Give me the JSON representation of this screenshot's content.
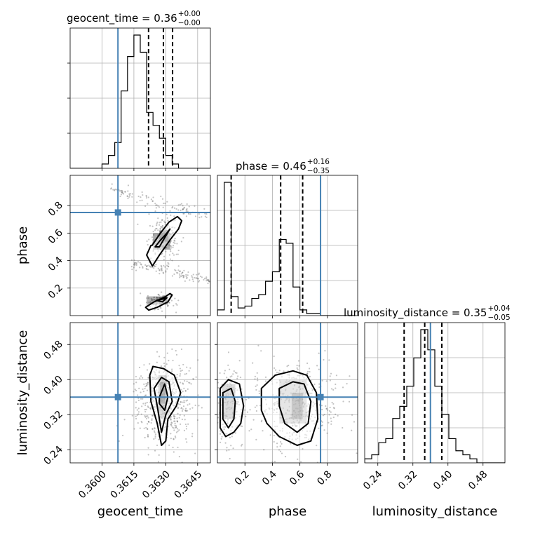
{
  "colors": {
    "truth": "#4682b4",
    "hist": "#000000",
    "grid": "#b0b0b0",
    "scatter": "#555555"
  },
  "chart_data": {
    "type": "corner",
    "parameters": [
      "geocent_time",
      "phase",
      "luminosity_distance"
    ],
    "truths": {
      "geocent_time": 0.36075,
      "phase": 0.75,
      "luminosity_distance": 0.36
    },
    "axis_labels": {
      "geocent_time": "geocent_time",
      "phase": "phase",
      "luminosity_distance": "luminosity_distance"
    },
    "ranges": {
      "geocent_time": [
        0.3585,
        0.3651
      ],
      "phase": [
        0.0,
        1.02
      ],
      "luminosity_distance": [
        0.21,
        0.53
      ]
    },
    "ticks": {
      "geocent_time": {
        "values": [
          0.36,
          0.3615,
          0.363,
          0.3645
        ],
        "labels": [
          "0.3600",
          "0.3615",
          "0.3630",
          "0.3645"
        ]
      },
      "phase": {
        "values": [
          0.2,
          0.4,
          0.6,
          0.8
        ],
        "labels": [
          "0.2",
          "0.4",
          "0.6",
          "0.8"
        ]
      },
      "luminosity_distance": {
        "values": [
          0.24,
          0.32,
          0.4,
          0.48
        ],
        "labels": [
          "0.24",
          "0.32",
          "0.40",
          "0.48"
        ]
      }
    },
    "titles": {
      "geocent_time": {
        "main": "geocent_time = 0.36",
        "sup": "+0.00",
        "sub": "−0.00"
      },
      "phase": {
        "main": "phase = 0.46",
        "sup": "+0.16",
        "sub": "−0.35"
      },
      "luminosity_distance": {
        "main": "luminosity_distance = 0.35",
        "sup": "+0.04",
        "sub": "−0.05"
      }
    },
    "histograms": {
      "geocent_time": {
        "edges_start": 0.3585,
        "bin_width": 0.0003,
        "counts": [
          0,
          0,
          0,
          0,
          0,
          1,
          3,
          6,
          18,
          26,
          31,
          27,
          13,
          10,
          7,
          3,
          1,
          0,
          0,
          0,
          0,
          0
        ],
        "quantiles": [
          0.36219,
          0.36289,
          0.36332
        ]
      },
      "phase": {
        "edges_start": 0.0,
        "bin_width": 0.05,
        "counts": [
          3,
          70,
          10,
          4,
          5,
          9,
          11,
          18,
          23,
          40,
          38,
          15,
          3,
          1,
          1,
          0,
          0,
          0,
          0,
          0
        ],
        "quantiles": [
          0.1,
          0.46,
          0.62
        ]
      },
      "luminosity_distance": {
        "edges_start": 0.21,
        "bin_width": 0.016,
        "counts": [
          1,
          2,
          5,
          6,
          11,
          14,
          19,
          26,
          33,
          28,
          19,
          12,
          6,
          3,
          2,
          1,
          0,
          0,
          0,
          0
        ],
        "quantiles": [
          0.3,
          0.347,
          0.386
        ]
      }
    },
    "contours": {
      "phase_vs_geocent_time": [
        {
          "level": 0.393,
          "x": [
            0.36235,
            0.36275,
            0.36315,
            0.36355,
            0.36375,
            0.3636,
            0.3632,
            0.3627,
            0.36237,
            0.3621,
            0.3623
          ],
          "y": [
            0.51,
            0.6,
            0.68,
            0.72,
            0.69,
            0.63,
            0.55,
            0.44,
            0.36,
            0.44,
            0.51
          ]
        },
        {
          "level": 0.675,
          "x": [
            0.3627,
            0.36305,
            0.3632,
            0.363,
            0.3627,
            0.3625,
            0.3627
          ],
          "y": [
            0.54,
            0.6,
            0.63,
            0.58,
            0.5,
            0.5,
            0.54
          ]
        },
        {
          "level": 0.393,
          "x": [
            0.36205,
            0.36245,
            0.3629,
            0.3632,
            0.3633,
            0.3631,
            0.3626,
            0.3622,
            0.36205
          ],
          "y": [
            0.06,
            0.1,
            0.13,
            0.16,
            0.15,
            0.1,
            0.06,
            0.04,
            0.06
          ]
        },
        {
          "level": 0.675,
          "x": [
            0.36255,
            0.36285,
            0.36305,
            0.36285,
            0.36255
          ],
          "y": [
            0.11,
            0.12,
            0.13,
            0.1,
            0.11
          ]
        }
      ],
      "luminosity_distance_vs_geocent_time": [
        {
          "level": 0.393,
          "x": [
            0.36225,
            0.3624,
            0.3629,
            0.3634,
            0.3637,
            0.3635,
            0.3631,
            0.363,
            0.3628,
            0.3626,
            0.3623,
            0.36225
          ],
          "y": [
            0.41,
            0.43,
            0.425,
            0.41,
            0.37,
            0.34,
            0.31,
            0.26,
            0.25,
            0.3,
            0.35,
            0.41
          ]
        },
        {
          "level": 0.675,
          "x": [
            0.36245,
            0.3628,
            0.36315,
            0.3633,
            0.363,
            0.3628,
            0.3626,
            0.36245
          ],
          "y": [
            0.38,
            0.405,
            0.395,
            0.35,
            0.32,
            0.28,
            0.34,
            0.38
          ]
        },
        {
          "level": 0.865,
          "x": [
            0.3627,
            0.36295,
            0.3631,
            0.36295,
            0.3627,
            0.3627
          ],
          "y": [
            0.36,
            0.39,
            0.36,
            0.33,
            0.345,
            0.36
          ]
        }
      ],
      "luminosity_distance_vs_phase": [
        {
          "level": 0.393,
          "x": [
            0.02,
            0.08,
            0.16,
            0.19,
            0.17,
            0.12,
            0.06,
            0.02,
            0.02
          ],
          "y": [
            0.38,
            0.4,
            0.39,
            0.34,
            0.3,
            0.28,
            0.27,
            0.29,
            0.38
          ]
        },
        {
          "level": 0.675,
          "x": [
            0.04,
            0.1,
            0.13,
            0.12,
            0.08,
            0.04,
            0.04
          ],
          "y": [
            0.37,
            0.38,
            0.35,
            0.31,
            0.29,
            0.31,
            0.37
          ]
        },
        {
          "level": 0.393,
          "x": [
            0.32,
            0.42,
            0.55,
            0.65,
            0.72,
            0.73,
            0.68,
            0.58,
            0.45,
            0.36,
            0.32,
            0.32
          ],
          "y": [
            0.38,
            0.41,
            0.42,
            0.41,
            0.37,
            0.31,
            0.26,
            0.25,
            0.27,
            0.3,
            0.33,
            0.38
          ]
        },
        {
          "level": 0.675,
          "x": [
            0.45,
            0.55,
            0.63,
            0.68,
            0.66,
            0.58,
            0.49,
            0.45,
            0.45
          ],
          "y": [
            0.38,
            0.395,
            0.39,
            0.35,
            0.3,
            0.28,
            0.3,
            0.34,
            0.38
          ]
        }
      ]
    }
  }
}
